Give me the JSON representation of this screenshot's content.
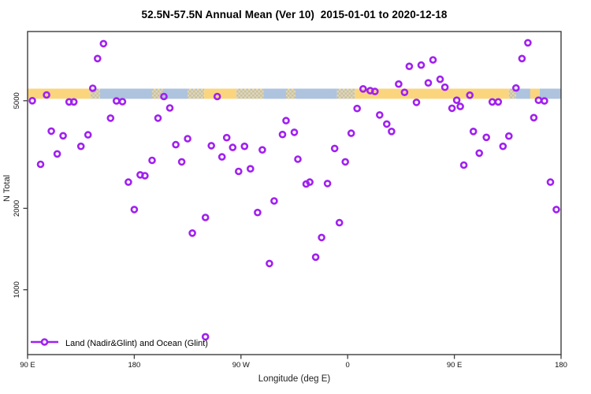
{
  "title": "52.5N-57.5N Annual Mean (Ver 10)  2015-01-01 to 2020-12-18",
  "legend": {
    "label": "Land (Nadir&Glint) and Ocean (Glint)",
    "position": "bottom-left"
  },
  "colors": {
    "marker": "#A020F0",
    "land": "#FAD57E",
    "ocean": "#AEC3DD",
    "axis": "#3d3d3d",
    "text": "#000000"
  },
  "axes": {
    "x": {
      "label": "Longitude (deg E)",
      "range": [
        90,
        540
      ],
      "note": "axis wraps eastward: 90E -> 180 -> 90W -> 0 -> 90E -> 180",
      "ticks": [
        {
          "value": 90,
          "label": "90 E"
        },
        {
          "value": 180,
          "label": "180"
        },
        {
          "value": 270,
          "label": "90 W"
        },
        {
          "value": 360,
          "label": "0"
        },
        {
          "value": 450,
          "label": "90 E"
        },
        {
          "value": 540,
          "label": "180"
        }
      ]
    },
    "y": {
      "label": "N Total",
      "scale": "log",
      "ticks": [
        1000,
        2000,
        5000
      ],
      "range": [
        580,
        9000
      ]
    }
  },
  "chart_data": {
    "type": "scatter",
    "title": "52.5N-57.5N Annual Mean (Ver 10)  2015-01-01 to 2020-12-18",
    "xlabel": "Longitude (deg E)",
    "ylabel": "N Total",
    "x_unit": "degrees along wrapped longitude axis (start 90E, +eastward)",
    "grid": false,
    "legend_position": "bottom-left",
    "series": [
      {
        "name": "Land (Nadir&Glint) and Ocean (Glint)",
        "marker": "open-circle",
        "points": [
          [
            94,
            5000
          ],
          [
            101,
            2910
          ],
          [
            106,
            5250
          ],
          [
            110,
            3860
          ],
          [
            115,
            3180
          ],
          [
            120,
            3710
          ],
          [
            125,
            4950
          ],
          [
            129,
            4950
          ],
          [
            135,
            3390
          ],
          [
            141,
            3740
          ],
          [
            145,
            5560
          ],
          [
            149,
            7160
          ],
          [
            154,
            8130
          ],
          [
            160,
            4310
          ],
          [
            165,
            4990
          ],
          [
            170,
            4960
          ],
          [
            175,
            2500
          ],
          [
            180,
            1980
          ],
          [
            185,
            2660
          ],
          [
            189,
            2640
          ],
          [
            195,
            3010
          ],
          [
            200,
            4310
          ],
          [
            205,
            5180
          ],
          [
            210,
            4700
          ],
          [
            215,
            3440
          ],
          [
            220,
            2970
          ],
          [
            225,
            3620
          ],
          [
            229,
            1620
          ],
          [
            240,
            1850
          ],
          [
            240,
            670
          ],
          [
            245,
            3410
          ],
          [
            250,
            5180
          ],
          [
            254,
            3100
          ],
          [
            258,
            3650
          ],
          [
            263,
            3360
          ],
          [
            268,
            2740
          ],
          [
            273,
            3390
          ],
          [
            278,
            2800
          ],
          [
            284,
            1930
          ],
          [
            288,
            3290
          ],
          [
            294,
            1250
          ],
          [
            298,
            2130
          ],
          [
            305,
            3750
          ],
          [
            308,
            4220
          ],
          [
            315,
            3820
          ],
          [
            318,
            3040
          ],
          [
            325,
            2460
          ],
          [
            328,
            2500
          ],
          [
            333,
            1320
          ],
          [
            338,
            1560
          ],
          [
            343,
            2470
          ],
          [
            349,
            3330
          ],
          [
            353,
            1770
          ],
          [
            358,
            2970
          ],
          [
            363,
            3790
          ],
          [
            368,
            4680
          ],
          [
            373,
            5530
          ],
          [
            379,
            5450
          ],
          [
            383,
            5410
          ],
          [
            387,
            4430
          ],
          [
            393,
            4100
          ],
          [
            397,
            3850
          ],
          [
            403,
            5760
          ],
          [
            408,
            5370
          ],
          [
            412,
            6700
          ],
          [
            418,
            4930
          ],
          [
            422,
            6770
          ],
          [
            428,
            5820
          ],
          [
            432,
            7080
          ],
          [
            438,
            6000
          ],
          [
            442,
            5610
          ],
          [
            448,
            4690
          ],
          [
            452,
            5020
          ],
          [
            455,
            4760
          ],
          [
            458,
            2890
          ],
          [
            463,
            5240
          ],
          [
            466,
            3850
          ],
          [
            471,
            3200
          ],
          [
            477,
            3660
          ],
          [
            482,
            4950
          ],
          [
            487,
            4950
          ],
          [
            491,
            3390
          ],
          [
            496,
            3700
          ],
          [
            502,
            5570
          ],
          [
            507,
            7160
          ],
          [
            512,
            8190
          ],
          [
            517,
            4330
          ],
          [
            521,
            5020
          ],
          [
            526,
            4990
          ],
          [
            531,
            2500
          ],
          [
            536,
            1980
          ]
        ]
      }
    ],
    "surface_band": {
      "description": "surface-type strip along 52.5N-57.5N: orange = land, blue = ocean",
      "value_top": 5540,
      "value_bottom": 5080,
      "segments": [
        {
          "from": 90,
          "to": 143,
          "type": "land"
        },
        {
          "from": 143,
          "to": 151,
          "type": "mix"
        },
        {
          "from": 151,
          "to": 195,
          "type": "ocean"
        },
        {
          "from": 195,
          "to": 204,
          "type": "mix"
        },
        {
          "from": 204,
          "to": 225,
          "type": "ocean"
        },
        {
          "from": 225,
          "to": 239,
          "type": "mix"
        },
        {
          "from": 239,
          "to": 266,
          "type": "land"
        },
        {
          "from": 266,
          "to": 289,
          "type": "mix"
        },
        {
          "from": 289,
          "to": 308,
          "type": "ocean"
        },
        {
          "from": 308,
          "to": 316,
          "type": "mix"
        },
        {
          "from": 316,
          "to": 351,
          "type": "ocean"
        },
        {
          "from": 351,
          "to": 366,
          "type": "mix"
        },
        {
          "from": 366,
          "to": 496,
          "type": "land"
        },
        {
          "from": 496,
          "to": 502,
          "type": "mix"
        },
        {
          "from": 502,
          "to": 514,
          "type": "ocean"
        },
        {
          "from": 514,
          "to": 522,
          "type": "land"
        },
        {
          "from": 522,
          "to": 540,
          "type": "ocean"
        }
      ]
    }
  }
}
